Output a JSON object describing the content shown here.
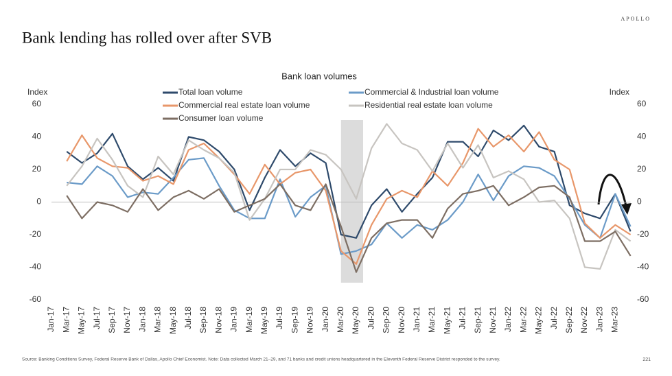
{
  "brand": "APOLLO",
  "title": "Bank lending has rolled over after SVB",
  "footnote": "Source: Banking Conditions Survey, Federal Reserve Bank of Dallas, Apollo Chief Economist. Note: Data collected March 21–29, and 71 banks and credit unions headquartered in the Eleventh Federal Reserve District responded to the survey.",
  "page_number": "221",
  "chart_data": {
    "type": "line",
    "title": "Bank loan volumes",
    "ylabel": "Index",
    "y2label": "Index",
    "categories": [
      "Jan-17",
      "Mar-17",
      "May-17",
      "Jul-17",
      "Sep-17",
      "Nov-17",
      "Jan-18",
      "Mar-18",
      "May-18",
      "Jul-18",
      "Sep-18",
      "Nov-18",
      "Jan-19",
      "Mar-19",
      "May-19",
      "Jul-19",
      "Sep-19",
      "Nov-19",
      "Jan-20",
      "Mar-20",
      "May-20",
      "Jul-20",
      "Sep-20",
      "Nov-20",
      "Jan-21",
      "Mar-21",
      "May-21",
      "Jul-21",
      "Sep-21",
      "Nov-21",
      "Jan-22",
      "Mar-22",
      "May-22",
      "Jul-22",
      "Sep-22",
      "Nov-22",
      "Jan-23",
      "Mar-23",
      null
    ],
    "series": [
      {
        "name": "Total loan volume",
        "color": "#2e4a6b",
        "values": [
          null,
          31,
          24,
          30,
          42,
          22,
          14,
          21,
          13,
          40,
          38,
          31,
          20,
          -5,
          15,
          32,
          22,
          30,
          24,
          -20,
          -22,
          -2,
          8,
          -6,
          5,
          15,
          37,
          37,
          28,
          44,
          38,
          47,
          34,
          31,
          -2,
          -7,
          -10,
          5,
          -18
        ]
      },
      {
        "name": "Commercial & Industrial loan volume",
        "color": "#6b9bc8",
        "values": [
          null,
          12,
          11,
          22,
          16,
          3,
          6,
          5,
          15,
          26,
          27,
          10,
          -5,
          -10,
          -10,
          14,
          -9,
          3,
          10,
          -32,
          -30,
          -26,
          -13,
          -22,
          -14,
          -17,
          -11,
          0,
          17,
          1,
          16,
          22,
          21,
          16,
          2,
          -14,
          -22,
          5,
          -15
        ]
      },
      {
        "name": "Commercial real estate loan volume",
        "color": "#e8976a",
        "values": [
          null,
          25,
          41,
          27,
          22,
          21,
          13,
          16,
          11,
          32,
          36,
          27,
          17,
          5,
          23,
          11,
          18,
          20,
          7,
          -30,
          -38,
          -14,
          2,
          7,
          3,
          19,
          10,
          24,
          45,
          34,
          41,
          31,
          43,
          26,
          20,
          -13,
          -22,
          -14,
          -20
        ]
      },
      {
        "name": "Residential real estate loan volume",
        "color": "#c7c4c0",
        "values": [
          null,
          10,
          22,
          39,
          26,
          10,
          3,
          28,
          17,
          38,
          32,
          27,
          18,
          -11,
          2,
          20,
          20,
          32,
          29,
          20,
          2,
          33,
          48,
          36,
          32,
          19,
          36,
          21,
          35,
          15,
          19,
          14,
          0,
          1,
          -10,
          -40,
          -41,
          -17,
          -24
        ]
      },
      {
        "name": "Consumer loan volume",
        "color": "#7d6e63",
        "values": [
          null,
          4,
          -10,
          0,
          -2,
          -6,
          8,
          -5,
          3,
          7,
          2,
          8,
          -6,
          -2,
          2,
          11,
          -2,
          -5,
          11,
          -15,
          -43,
          -22,
          -13,
          -11,
          -11,
          -22,
          -4,
          5,
          7,
          10,
          -2,
          3,
          9,
          10,
          3,
          -24,
          -24,
          -18,
          -33
        ]
      }
    ],
    "ylim": [
      -60,
      60
    ],
    "yticks": [
      60,
      40,
      20,
      0,
      -20,
      -40,
      -60
    ],
    "y2lim": [
      -60,
      60
    ],
    "y2ticks": [
      60,
      40,
      20,
      0,
      -20,
      -40,
      -60
    ],
    "shaded_range": [
      "Mar-20",
      "May-20"
    ]
  }
}
